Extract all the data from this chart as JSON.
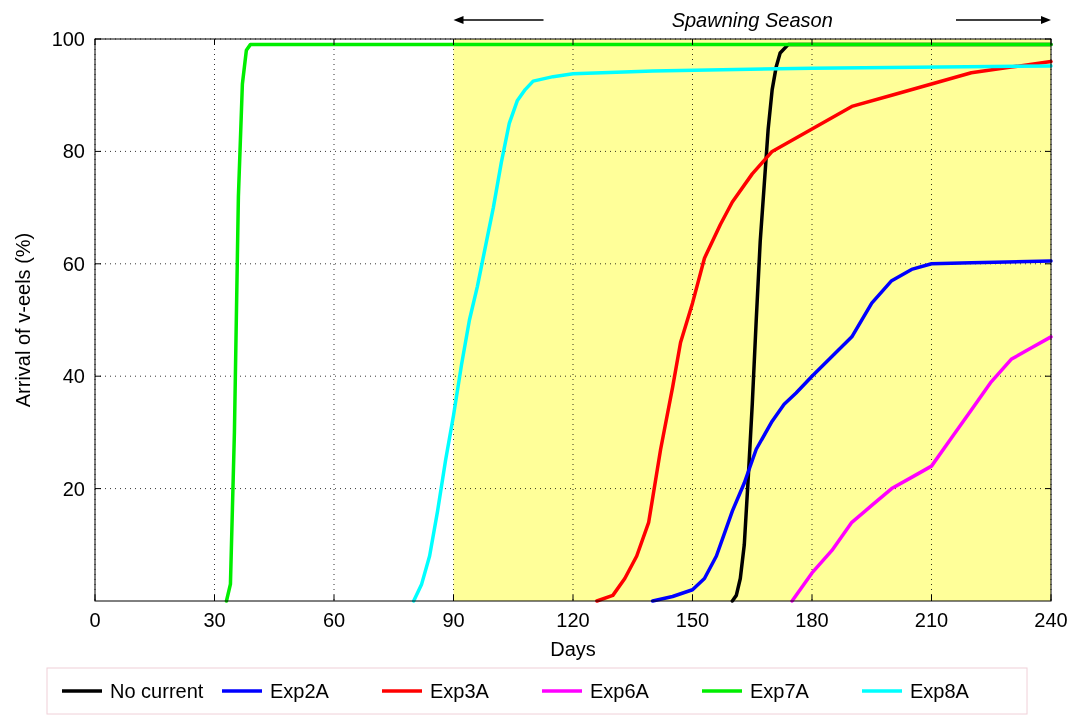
{
  "chart_data": {
    "type": "line",
    "xlabel": "Days",
    "ylabel": "Arrival of v-eels (%)",
    "xlim": [
      0,
      240
    ],
    "xticks": [
      0,
      30,
      60,
      90,
      120,
      150,
      180,
      210,
      240
    ],
    "ylim": [
      0,
      100
    ],
    "yticks": [
      20,
      40,
      60,
      80,
      100
    ],
    "grid": true,
    "legend": "bottom",
    "line_style": "solid",
    "marker": "none",
    "bands": [
      {
        "axis": "x",
        "from": 90,
        "to": 240,
        "label": "Spawning Season",
        "color": "#ffff99"
      }
    ],
    "series": [
      {
        "name": "No current",
        "color": "#000000",
        "x": [
          160,
          161,
          162,
          163,
          164,
          165,
          166,
          167,
          168,
          169,
          170,
          171,
          172,
          174,
          240
        ],
        "values": [
          0,
          1,
          4,
          10,
          22,
          35,
          50,
          64,
          74,
          84,
          91,
          95,
          97.5,
          99,
          99
        ]
      },
      {
        "name": "Exp2A",
        "color": "#0000ff",
        "x": [
          140,
          145,
          150,
          153,
          156,
          158,
          160,
          163,
          166,
          170,
          173,
          176,
          180,
          185,
          190,
          195,
          200,
          205,
          210,
          220,
          240
        ],
        "values": [
          0,
          0.8,
          2,
          4,
          8,
          12,
          16,
          21,
          27,
          32,
          35,
          37,
          40,
          43.5,
          47,
          53,
          57,
          59,
          60,
          60.2,
          60.5
        ]
      },
      {
        "name": "Exp3A",
        "color": "#ff0000",
        "x": [
          126,
          130,
          133,
          136,
          139,
          142,
          145,
          147,
          150,
          153,
          157,
          160,
          165,
          170,
          175,
          180,
          190,
          200,
          210,
          220,
          230,
          240
        ],
        "values": [
          0,
          1,
          4,
          8,
          14,
          27,
          38,
          46,
          53,
          61,
          67,
          71,
          76,
          80,
          82,
          84,
          88,
          90,
          92,
          94,
          95,
          96
        ]
      },
      {
        "name": "Exp6A",
        "color": "#ff00ff",
        "x": [
          175,
          180,
          185,
          190,
          195,
          200,
          205,
          210,
          215,
          220,
          225,
          230,
          235,
          240
        ],
        "values": [
          0,
          5,
          9,
          14,
          17,
          20,
          22,
          24,
          29,
          34,
          39,
          43,
          45,
          47
        ]
      },
      {
        "name": "Exp7A",
        "color": "#00ee00",
        "x": [
          33,
          34,
          35,
          36,
          37,
          38,
          39,
          240
        ],
        "values": [
          0,
          3,
          30,
          72,
          92,
          98,
          99,
          99
        ]
      },
      {
        "name": "Exp8A",
        "color": "#00ffff",
        "x": [
          80,
          82,
          84,
          86,
          88,
          90,
          92,
          94,
          96,
          98,
          100,
          102,
          104,
          106,
          108,
          110,
          115,
          120,
          140,
          180,
          240
        ],
        "values": [
          0,
          3,
          8,
          16,
          25,
          33,
          42,
          50,
          56,
          63,
          70,
          78,
          85,
          89,
          91,
          92.5,
          93.3,
          93.8,
          94.3,
          94.8,
          95.2
        ]
      }
    ]
  }
}
